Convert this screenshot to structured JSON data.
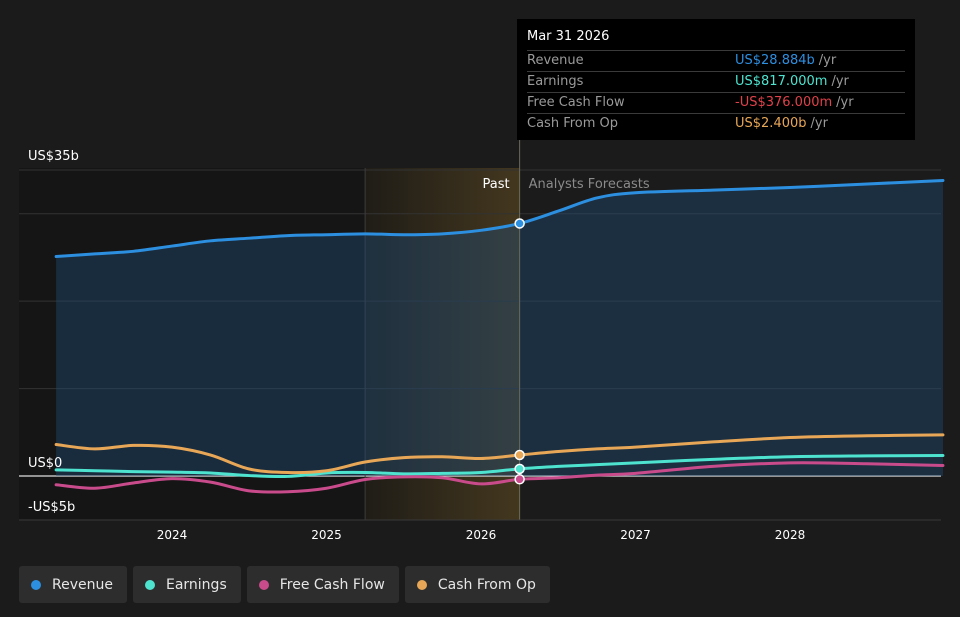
{
  "chart_data": {
    "type": "area",
    "y_tick_labels": [
      "US$35b",
      "US$0",
      "-US$5b"
    ],
    "ylim": [
      -5,
      35
    ],
    "x_ticks": [
      {
        "label": "2024",
        "x": 2024.0
      },
      {
        "label": "2025",
        "x": 2025.0
      },
      {
        "label": "2026",
        "x": 2026.0
      },
      {
        "label": "2027",
        "x": 2027.0
      },
      {
        "label": "2028",
        "x": 2028.0
      }
    ],
    "xlim": [
      2023.0,
      2028.99
    ],
    "past_label": "Past",
    "forecast_label": "Analysts Forecasts",
    "past_end_x": 2026.25,
    "highlight_start_x": 2025.25,
    "series": [
      {
        "name": "Revenue",
        "color": "#2d8fe0",
        "fill": true,
        "points": [
          [
            2023.25,
            25.1
          ],
          [
            2023.5,
            25.4
          ],
          [
            2023.75,
            25.7
          ],
          [
            2024.0,
            26.3
          ],
          [
            2024.25,
            26.9
          ],
          [
            2024.5,
            27.2
          ],
          [
            2024.75,
            27.5
          ],
          [
            2025.0,
            27.6
          ],
          [
            2025.25,
            27.7
          ],
          [
            2025.5,
            27.6
          ],
          [
            2025.75,
            27.7
          ],
          [
            2026.0,
            28.1
          ],
          [
            2026.25,
            28.884
          ],
          [
            2026.5,
            30.3
          ],
          [
            2026.75,
            31.8
          ],
          [
            2027.0,
            32.4
          ],
          [
            2027.5,
            32.7
          ],
          [
            2028.0,
            33.0
          ],
          [
            2028.5,
            33.4
          ],
          [
            2028.99,
            33.8
          ]
        ]
      },
      {
        "name": "Earnings",
        "color": "#4de3cf",
        "fill": false,
        "points": [
          [
            2023.25,
            0.7
          ],
          [
            2023.5,
            0.6
          ],
          [
            2023.75,
            0.5
          ],
          [
            2024.0,
            0.45
          ],
          [
            2024.25,
            0.35
          ],
          [
            2024.5,
            0.05
          ],
          [
            2024.75,
            -0.05
          ],
          [
            2025.0,
            0.35
          ],
          [
            2025.25,
            0.4
          ],
          [
            2025.5,
            0.25
          ],
          [
            2025.75,
            0.3
          ],
          [
            2026.0,
            0.4
          ],
          [
            2026.25,
            0.817
          ],
          [
            2026.5,
            1.1
          ],
          [
            2026.75,
            1.3
          ],
          [
            2027.0,
            1.5
          ],
          [
            2027.5,
            1.9
          ],
          [
            2028.0,
            2.2
          ],
          [
            2028.5,
            2.3
          ],
          [
            2028.99,
            2.35
          ]
        ]
      },
      {
        "name": "Free Cash Flow",
        "color": "#c94b8c",
        "fill": false,
        "points": [
          [
            2023.25,
            -1.0
          ],
          [
            2023.5,
            -1.4
          ],
          [
            2023.75,
            -0.8
          ],
          [
            2024.0,
            -0.3
          ],
          [
            2024.25,
            -0.7
          ],
          [
            2024.5,
            -1.7
          ],
          [
            2024.75,
            -1.8
          ],
          [
            2025.0,
            -1.4
          ],
          [
            2025.25,
            -0.4
          ],
          [
            2025.5,
            -0.1
          ],
          [
            2025.75,
            -0.2
          ],
          [
            2026.0,
            -0.9
          ],
          [
            2026.25,
            -0.376
          ],
          [
            2026.5,
            -0.2
          ],
          [
            2026.75,
            0.1
          ],
          [
            2027.0,
            0.3
          ],
          [
            2027.5,
            1.1
          ],
          [
            2028.0,
            1.5
          ],
          [
            2028.5,
            1.4
          ],
          [
            2028.99,
            1.2
          ]
        ]
      },
      {
        "name": "Cash From Op",
        "color": "#e8a757",
        "fill": false,
        "points": [
          [
            2023.25,
            3.6
          ],
          [
            2023.5,
            3.1
          ],
          [
            2023.75,
            3.5
          ],
          [
            2024.0,
            3.3
          ],
          [
            2024.25,
            2.4
          ],
          [
            2024.5,
            0.8
          ],
          [
            2024.75,
            0.4
          ],
          [
            2025.0,
            0.6
          ],
          [
            2025.25,
            1.6
          ],
          [
            2025.5,
            2.1
          ],
          [
            2025.75,
            2.2
          ],
          [
            2026.0,
            2.0
          ],
          [
            2026.25,
            2.4
          ],
          [
            2026.5,
            2.8
          ],
          [
            2026.75,
            3.1
          ],
          [
            2027.0,
            3.3
          ],
          [
            2027.5,
            3.9
          ],
          [
            2028.0,
            4.4
          ],
          [
            2028.5,
            4.6
          ],
          [
            2028.99,
            4.7
          ]
        ]
      }
    ]
  },
  "tooltip": {
    "date": "Mar 31 2026",
    "rows": [
      {
        "label": "Revenue",
        "value": "US$28.884b",
        "unit": "/yr",
        "color": "#2d8fe0"
      },
      {
        "label": "Earnings",
        "value": "US$817.000m",
        "unit": "/yr",
        "color": "#4de3cf"
      },
      {
        "label": "Free Cash Flow",
        "value": "-US$376.000m",
        "unit": "/yr",
        "color": "#e0414a"
      },
      {
        "label": "Cash From Op",
        "value": "US$2.400b",
        "unit": "/yr",
        "color": "#e8a757"
      }
    ]
  },
  "legend": [
    {
      "label": "Revenue",
      "color": "#2d8fe0"
    },
    {
      "label": "Earnings",
      "color": "#4de3cf"
    },
    {
      "label": "Free Cash Flow",
      "color": "#c94b8c"
    },
    {
      "label": "Cash From Op",
      "color": "#e8a757"
    }
  ]
}
